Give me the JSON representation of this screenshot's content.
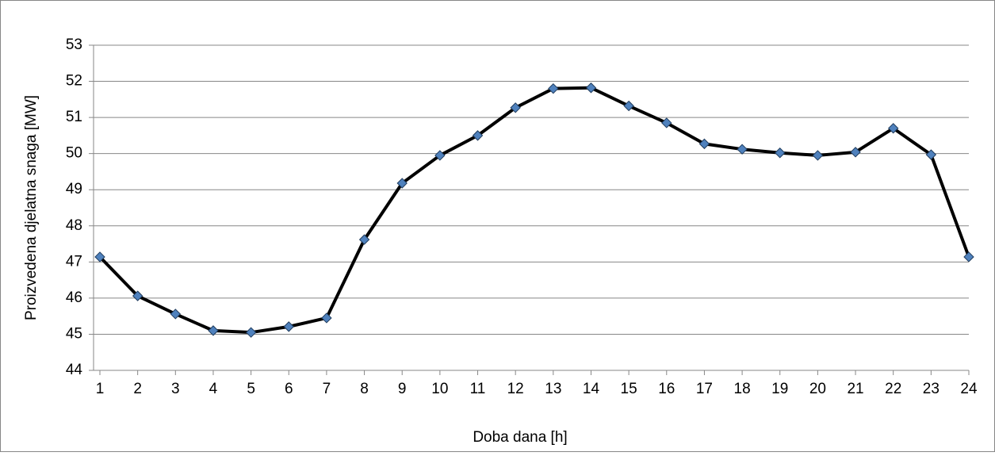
{
  "chart_data": {
    "type": "line",
    "x_label": "Doba dana [h]",
    "y_label": "Proizvedena djelatna snaga [MW]",
    "x": [
      1,
      2,
      3,
      4,
      5,
      6,
      7,
      8,
      9,
      10,
      11,
      12,
      13,
      14,
      15,
      16,
      17,
      18,
      19,
      20,
      21,
      22,
      23,
      24
    ],
    "series": [
      {
        "color": "#000000",
        "marker_color": "#4f81bd",
        "values": [
          47.14,
          46.06,
          45.56,
          45.1,
          45.05,
          45.21,
          45.45,
          47.62,
          49.18,
          49.95,
          50.5,
          51.27,
          51.8,
          51.82,
          51.32,
          50.85,
          50.27,
          50.12,
          50.02,
          49.95,
          50.04,
          50.7,
          49.97,
          47.14
        ]
      }
    ],
    "xlim": [
      1,
      24
    ],
    "xticks": [
      1,
      2,
      3,
      4,
      5,
      6,
      7,
      8,
      9,
      10,
      11,
      12,
      13,
      14,
      15,
      16,
      17,
      18,
      19,
      20,
      21,
      22,
      23,
      24
    ],
    "ylim": [
      44,
      53
    ],
    "yticks": [
      44,
      45,
      46,
      47,
      48,
      49,
      50,
      51,
      52,
      53
    ],
    "grid": true
  }
}
